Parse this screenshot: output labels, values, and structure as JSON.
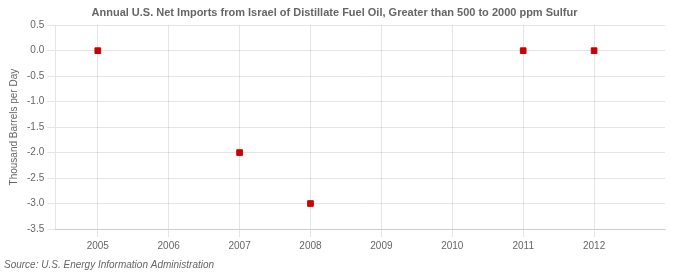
{
  "chart_data": {
    "type": "scatter",
    "title": "Annual U.S. Net Imports from Israel of Distillate Fuel Oil, Greater than 500 to 2000 ppm Sulfur",
    "ylabel": "Thousand Barrels per Day",
    "annotation": "Source: U.S. Energy Information Administration",
    "x": [
      2005,
      2007,
      2008,
      2011,
      2012
    ],
    "values": [
      0.0,
      -2.0,
      -3.0,
      0.0,
      0.0
    ],
    "color": "#CC0000",
    "marker": "square",
    "line_style": "none",
    "xlim": [
      2004.4,
      2013.0
    ],
    "ylim": [
      -3.5,
      0.5
    ],
    "xticks": [
      2005,
      2006,
      2007,
      2008,
      2009,
      2010,
      2011,
      2012
    ],
    "yticks": [
      0.5,
      {
        "value": 0.0,
        "label": "0.0"
      },
      -0.5,
      {
        "value": -1.0,
        "label": "-1.0"
      },
      -1.5,
      {
        "value": -2.0,
        "label": "-2.0"
      },
      -2.5,
      {
        "value": -3.0,
        "label": "-3.0"
      },
      -3.5
    ],
    "grid": true
  }
}
